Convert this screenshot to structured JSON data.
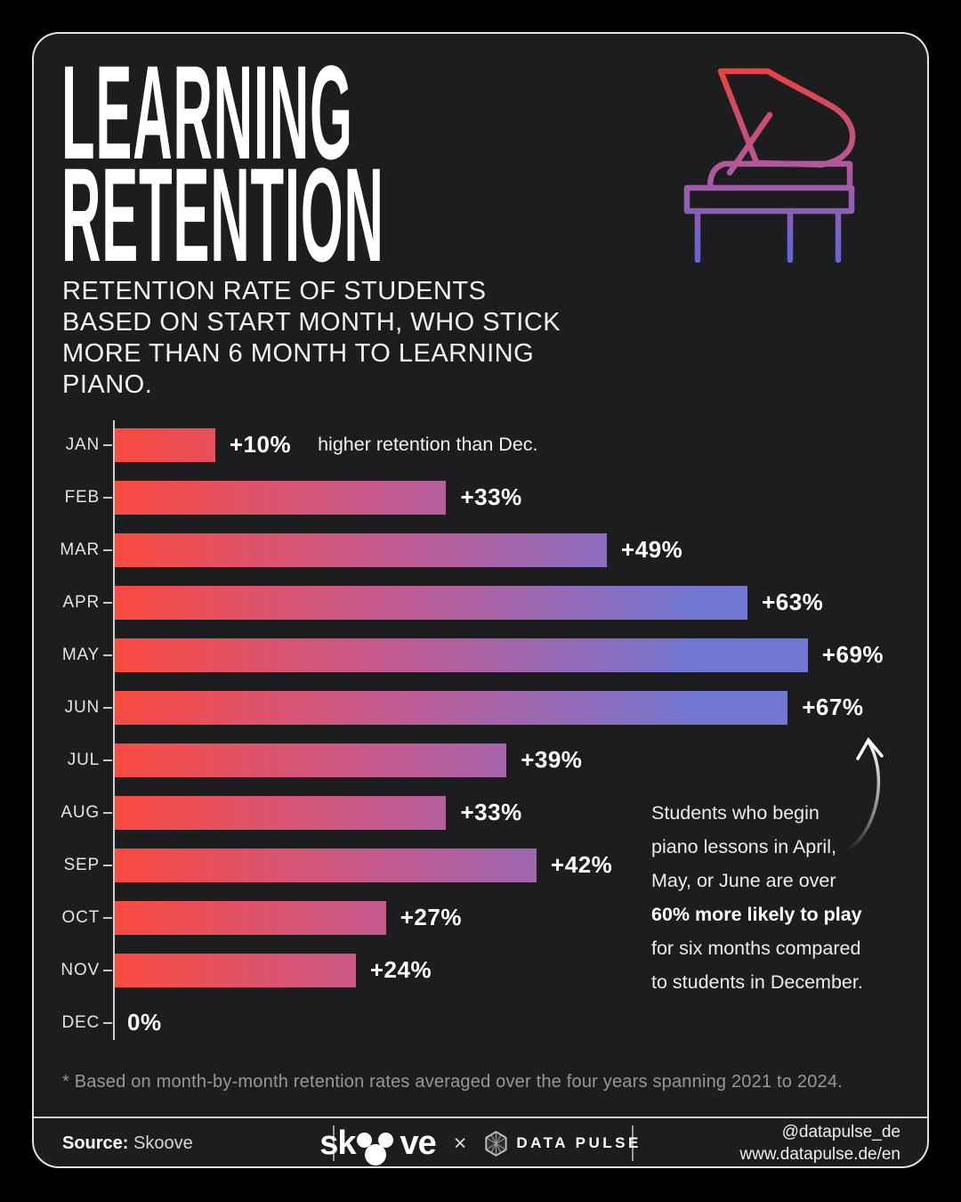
{
  "header": {
    "title_line1": "LEARNING",
    "title_line2": "RETENTION",
    "subtitle": "RETENTION RATE OF STUDENTS BASED ON START MONTH, WHO STICK MORE THAN 6 MONTH TO LEARNING PIANO.",
    "piano_icon": "grand-piano-outline-icon",
    "piano_gradient": [
      "#ee4136",
      "#b2589b",
      "#5b67de"
    ]
  },
  "chart_data": {
    "type": "bar",
    "orientation": "horizontal",
    "title": "Retention uplift vs. December by start month",
    "categories": [
      "JAN",
      "FEB",
      "MAR",
      "APR",
      "MAY",
      "JUN",
      "JUL",
      "AUG",
      "SEP",
      "OCT",
      "NOV",
      "DEC"
    ],
    "values": [
      10,
      33,
      49,
      63,
      69,
      67,
      39,
      33,
      42,
      27,
      24,
      0
    ],
    "value_labels": [
      "+10%",
      "+33%",
      "+49%",
      "+63%",
      "+69%",
      "+67%",
      "+39%",
      "+33%",
      "+42%",
      "+27%",
      "+24%",
      "0%"
    ],
    "unit": "% higher retention than Dec.",
    "first_bar_note": "higher retention than Dec.",
    "xlim": [
      0,
      69
    ],
    "grid": false,
    "bar_gradient": [
      "#fa4a40",
      "#c05b94",
      "#7277d2"
    ],
    "axis_color": "#cfcfcf",
    "max_value": 69,
    "max_bar_pct": 88,
    "gradient_span_value_pct": 57.6
  },
  "annotation": {
    "lines": [
      {
        "text": "Students who begin",
        "bold": false
      },
      {
        "text": "piano lessons in April,",
        "bold": false
      },
      {
        "text": "May, or June are over",
        "bold": false
      },
      {
        "text": "60% more likely to play",
        "bold": true
      },
      {
        "text": "for six months compared",
        "bold": false
      },
      {
        "text": "to students in December.",
        "bold": false
      }
    ],
    "arrow_icon": "curved-arrow-up-icon"
  },
  "footnote": "* Based on month-by-month retention rates averaged over the four years spanning 2021 to 2024.",
  "footer": {
    "source_label": "Source:",
    "source_value": " Skoove",
    "skoove_wordmark_prefix": "sk",
    "skoove_wordmark_suffix": "ve",
    "collab_separator": "×",
    "datapulse_name": "DATA PULSE",
    "handle": "@datapulse_de",
    "website": "www.datapulse.de/en"
  }
}
